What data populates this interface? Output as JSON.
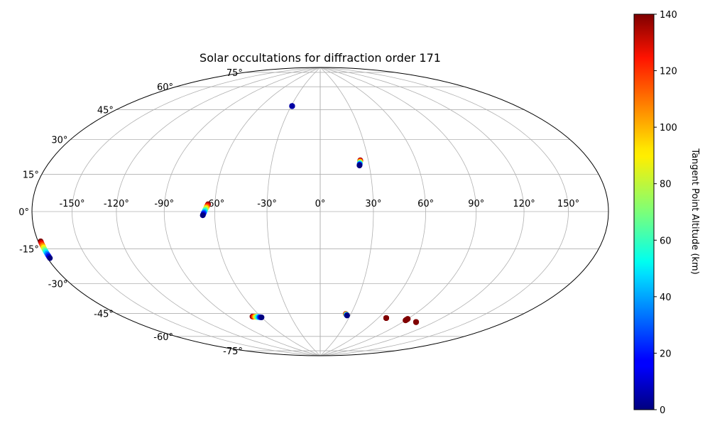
{
  "chart_data": {
    "type": "scatter",
    "title": "Solar occultations for diffraction order 171",
    "projection": "Aitoff / Hammer",
    "grid": true,
    "lon_ticks": [
      -150,
      -120,
      -90,
      -60,
      -30,
      0,
      30,
      60,
      90,
      120,
      150
    ],
    "lat_ticks": [
      -75,
      -60,
      -45,
      -30,
      -15,
      0,
      15,
      30,
      45,
      60,
      75
    ],
    "lon_tick_labels": [
      "-150°",
      "-120°",
      "-90°",
      "-60°",
      "-30°",
      "0°",
      "30°",
      "60°",
      "90°",
      "120°",
      "150°"
    ],
    "lat_tick_labels": [
      "-75°",
      "-60°",
      "-45°",
      "-30°",
      "-15°",
      "0°",
      "15°",
      "30°",
      "45°",
      "60°",
      "75°"
    ],
    "colorbar": {
      "label": "Tangent Point Altitude (km)",
      "range": [
        0,
        140
      ],
      "ticks": [
        0,
        20,
        40,
        60,
        80,
        100,
        120,
        140
      ],
      "colormap": "jet"
    },
    "tracks": [
      {
        "lon_start": -178,
        "lat_start": -12,
        "lon_end": -178,
        "lat_end": -19,
        "alt_start": 140,
        "alt_end": 0
      },
      {
        "lon_start": -64,
        "lat_start": 4,
        "lon_end": -67,
        "lat_end": -2,
        "alt_start": 140,
        "alt_end": 0
      },
      {
        "lon_start": -29,
        "lat_start": 62,
        "lon_end": -29,
        "lat_end": 62,
        "alt_start": 5,
        "alt_end": 5
      },
      {
        "lon_start": 25,
        "lat_start": 29,
        "lon_end": 24,
        "lat_end": 26,
        "alt_start": 140,
        "alt_end": 0
      },
      {
        "lon_start": -68,
        "lat_start": -60,
        "lon_end": -60,
        "lat_end": -61,
        "alt_start": 140,
        "alt_end": 0
      },
      {
        "lon_start": 25,
        "lat_start": -60,
        "lon_end": 27,
        "lat_end": -61,
        "alt_start": 140,
        "alt_end": 0
      },
      {
        "lon_start": 68,
        "lat_start": -61,
        "lon_end": 68,
        "lat_end": -61,
        "alt_start": 140,
        "alt_end": 140
      },
      {
        "lon_start": 90,
        "lat_start": -60,
        "lon_end": 90,
        "lat_end": -61,
        "alt_start": 140,
        "alt_end": 140
      },
      {
        "lon_start": 103,
        "lat_start": -61,
        "lon_end": 103,
        "lat_end": -61,
        "alt_start": 140,
        "alt_end": 140
      }
    ]
  }
}
